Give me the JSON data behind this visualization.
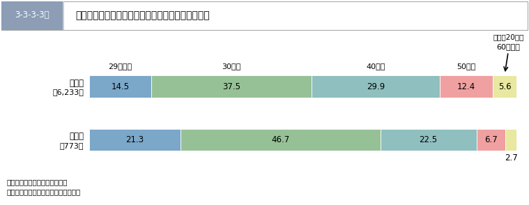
{
  "title": "覚せい剤取締法違反　入所受刑者の年齢層別構成比",
  "title_tag": "3-3-3-3図",
  "header_bg": "#8c9db5",
  "bar_colors": [
    "#7ba7c9",
    "#96c196",
    "#8fbfbf",
    "#f0a0a0",
    "#e8e8a0"
  ],
  "age_labels": [
    "29歳以下",
    "30歳代",
    "40歳代",
    "50歳代"
  ],
  "rows": [
    {
      "label": "総　数",
      "sublabel": "（6,233）",
      "values": [
        14.5,
        37.5,
        29.9,
        12.4,
        5.6
      ]
    },
    {
      "label": "女　子",
      "sublabel": "（773）",
      "values": [
        21.3,
        46.7,
        22.5,
        6.7,
        2.7
      ]
    }
  ],
  "annotation_year": "（平成20年）",
  "annotation_label": "60歳以上",
  "note1": "注　１　矯正統計年報による。",
  "note2": "　　２　（　）内は，実人員である。",
  "bg_color": "#ffffff"
}
